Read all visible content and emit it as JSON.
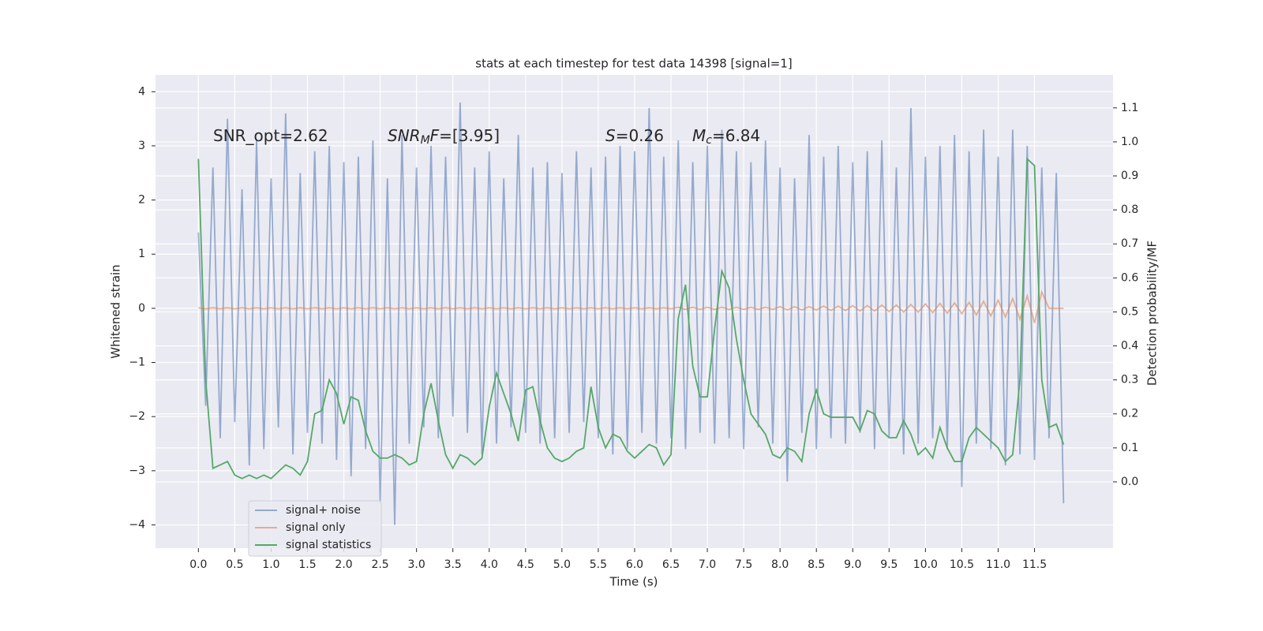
{
  "chart_data": {
    "type": "line",
    "title": "stats at each timestep for test data 14398 [signal=1]",
    "xlabel": "Time (s)",
    "ylabel": "Whitened strain",
    "y2label": "Detection probability/MF",
    "annotations": [
      {
        "parts": [
          "SNR_opt=2.62"
        ]
      },
      {
        "parts": [
          "SNR",
          "M",
          "F",
          "=[3.95]"
        ]
      },
      {
        "parts": [
          "S",
          "=0.26",
          "M",
          "c",
          "=6.84"
        ]
      }
    ],
    "grid": true,
    "legend": "lower left",
    "xlim": [
      -0.59,
      12.58
    ],
    "ylim": [
      -4.43,
      4.31
    ],
    "y2lim": [
      -0.195,
      1.197
    ],
    "xticks": [
      {
        "value": 0,
        "label": "0.0"
      },
      {
        "value": 0.5,
        "label": "0.5"
      },
      {
        "value": 1,
        "label": "1.0"
      },
      {
        "value": 1.5,
        "label": "1.5"
      },
      {
        "value": 2,
        "label": "2.0"
      },
      {
        "value": 2.5,
        "label": "2.5"
      },
      {
        "value": 3,
        "label": "3.0"
      },
      {
        "value": 3.5,
        "label": "3.5"
      },
      {
        "value": 4,
        "label": "4.0"
      },
      {
        "value": 4.5,
        "label": "4.5"
      },
      {
        "value": 5,
        "label": "5.0"
      },
      {
        "value": 5.5,
        "label": "5.5"
      },
      {
        "value": 6,
        "label": "6.0"
      },
      {
        "value": 6.5,
        "label": "6.5"
      },
      {
        "value": 7,
        "label": "7.0"
      },
      {
        "value": 7.5,
        "label": "7.5"
      },
      {
        "value": 8,
        "label": "8.0"
      },
      {
        "value": 8.5,
        "label": "8.5"
      },
      {
        "value": 9,
        "label": "9.0"
      },
      {
        "value": 9.5,
        "label": "9.5"
      },
      {
        "value": 10,
        "label": "10.0"
      },
      {
        "value": 10.5,
        "label": "10.5"
      },
      {
        "value": 11,
        "label": "11.0"
      },
      {
        "value": 11.5,
        "label": "11.5"
      }
    ],
    "yticks": [
      {
        "value": -4,
        "label": "−4"
      },
      {
        "value": -3,
        "label": "−3"
      },
      {
        "value": -2,
        "label": "−2"
      },
      {
        "value": -1,
        "label": "−1"
      },
      0,
      1,
      2,
      3,
      4
    ],
    "y2ticks": [
      {
        "value": 0,
        "label": "0.0"
      },
      {
        "value": 0.1,
        "label": "0.1"
      },
      {
        "value": 0.2,
        "label": "0.2"
      },
      {
        "value": 0.3,
        "label": "0.3"
      },
      {
        "value": 0.4,
        "label": "0.4"
      },
      {
        "value": 0.5,
        "label": "0.5"
      },
      {
        "value": 0.6,
        "label": "0.6"
      },
      {
        "value": 0.7,
        "label": "0.7"
      },
      {
        "value": 0.8,
        "label": "0.8"
      },
      {
        "value": 0.9,
        "label": "0.9"
      },
      {
        "value": 1,
        "label": "1.0"
      },
      {
        "value": 1.1,
        "label": "1.1"
      }
    ],
    "x": [
      0,
      0.1,
      0.2,
      0.3,
      0.4,
      0.5,
      0.6,
      0.7,
      0.8,
      0.9,
      1,
      1.1,
      1.2,
      1.3,
      1.4,
      1.5,
      1.6,
      1.7,
      1.8,
      1.9,
      2,
      2.1,
      2.2,
      2.3,
      2.4,
      2.5,
      2.6,
      2.7,
      2.8,
      2.9,
      3,
      3.1,
      3.2,
      3.3,
      3.4,
      3.5,
      3.6,
      3.7,
      3.8,
      3.9,
      4,
      4.1,
      4.2,
      4.3,
      4.4,
      4.5,
      4.6,
      4.7,
      4.8,
      4.9,
      5,
      5.1,
      5.2,
      5.3,
      5.4,
      5.5,
      5.6,
      5.7,
      5.8,
      5.9,
      6,
      6.1,
      6.2,
      6.3,
      6.4,
      6.5,
      6.6,
      6.7,
      6.8,
      6.9,
      7,
      7.1,
      7.2,
      7.3,
      7.4,
      7.5,
      7.6,
      7.7,
      7.8,
      7.9,
      8,
      8.1,
      8.2,
      8.3,
      8.4,
      8.5,
      8.6,
      8.7,
      8.8,
      8.9,
      9,
      9.1,
      9.2,
      9.3,
      9.4,
      9.5,
      9.6,
      9.7,
      9.8,
      9.9,
      10,
      10.1,
      10.2,
      10.3,
      10.4,
      10.5,
      10.6,
      10.7,
      10.8,
      10.9,
      11,
      11.1,
      11.2,
      11.3,
      11.4,
      11.5,
      11.6,
      11.7,
      11.8,
      11.9
    ],
    "series": [
      {
        "name": "signal+ noise",
        "color": "#4c72b0",
        "values": [
          1.4,
          -1.8,
          2.6,
          -2.4,
          3.5,
          -2.1,
          2.2,
          -2.9,
          3.1,
          -2.6,
          2.4,
          -2.2,
          3.6,
          -2.7,
          2.5,
          -2.3,
          2.9,
          -2.5,
          3.0,
          -2.8,
          2.7,
          -3.1,
          2.8,
          -2.6,
          3.1,
          -3.6,
          2.4,
          -4.0,
          3.2,
          -2.5,
          2.6,
          -2.2,
          3.0,
          -2.4,
          2.8,
          -2.0,
          3.8,
          -2.3,
          2.6,
          -2.7,
          2.9,
          -2.5,
          2.4,
          -2.2,
          3.2,
          -2.3,
          2.6,
          -2.5,
          2.7,
          -2.4,
          2.5,
          -2.3,
          2.9,
          -2.1,
          2.6,
          -2.4,
          2.8,
          -2.7,
          3.0,
          -2.6,
          2.9,
          -2.3,
          3.7,
          -2.5,
          2.8,
          -2.4,
          3.1,
          -2.6,
          2.7,
          -2.3,
          3.0,
          -2.5,
          3.3,
          -2.4,
          2.9,
          -2.6,
          2.7,
          -2.2,
          3.1,
          -2.5,
          2.6,
          -3.2,
          2.4,
          -2.3,
          3.2,
          -2.6,
          2.8,
          -2.4,
          3.0,
          -2.5,
          2.7,
          -2.3,
          2.9,
          -2.6,
          3.1,
          -2.4,
          2.6,
          -2.7,
          3.7,
          -2.5,
          2.8,
          -2.4,
          3.0,
          -2.6,
          3.2,
          -3.3,
          2.9,
          -2.5,
          3.3,
          -2.6,
          2.8,
          -2.9,
          3.3,
          -2.7,
          3.0,
          -2.8,
          2.6,
          -2.4,
          2.5,
          -3.6
        ]
      },
      {
        "name": "signal only",
        "color": "#dd8452",
        "values": [
          0.01,
          -0.01,
          0.01,
          -0.01,
          0.01,
          -0.01,
          0.01,
          -0.01,
          0.01,
          -0.01,
          0.01,
          -0.01,
          0.01,
          -0.01,
          0.01,
          -0.01,
          0.01,
          -0.01,
          0.01,
          -0.01,
          0.01,
          -0.01,
          0.01,
          -0.01,
          0.01,
          -0.01,
          0.01,
          -0.01,
          0.01,
          -0.01,
          0.01,
          -0.01,
          0.01,
          -0.01,
          0.01,
          -0.01,
          0.01,
          -0.01,
          0.01,
          -0.01,
          0.01,
          -0.01,
          0.01,
          -0.01,
          0.01,
          -0.01,
          0.01,
          -0.01,
          0.01,
          -0.01,
          0.01,
          -0.01,
          0.01,
          -0.01,
          0.01,
          -0.01,
          0.01,
          -0.01,
          0.01,
          -0.01,
          0.01,
          -0.01,
          0.01,
          -0.01,
          0.01,
          -0.01,
          0.02,
          -0.02,
          0.02,
          -0.02,
          0.02,
          -0.02,
          0.02,
          -0.02,
          0.02,
          -0.02,
          0.02,
          -0.02,
          0.02,
          -0.02,
          0.03,
          -0.03,
          0.03,
          -0.03,
          0.03,
          -0.03,
          0.04,
          -0.04,
          0.04,
          -0.04,
          0.05,
          -0.05,
          0.05,
          -0.05,
          0.06,
          -0.06,
          0.06,
          -0.07,
          0.07,
          -0.07,
          0.08,
          -0.08,
          0.09,
          -0.09,
          0.1,
          -0.1,
          0.11,
          -0.12,
          0.13,
          -0.14,
          0.15,
          -0.16,
          0.18,
          -0.2,
          0.23,
          -0.27,
          0.3,
          0,
          0,
          0
        ]
      },
      {
        "name": "signal statistics",
        "color": "#55a868",
        "axis": "y2",
        "values": [
          0.95,
          0.3,
          0.04,
          0.05,
          0.06,
          0.02,
          0.01,
          0.02,
          0.01,
          0.02,
          0.01,
          0.03,
          0.05,
          0.04,
          0.02,
          0.06,
          0.2,
          0.21,
          0.3,
          0.26,
          0.17,
          0.25,
          0.24,
          0.15,
          0.09,
          0.07,
          0.07,
          0.08,
          0.07,
          0.05,
          0.06,
          0.2,
          0.29,
          0.18,
          0.08,
          0.04,
          0.08,
          0.07,
          0.05,
          0.07,
          0.22,
          0.32,
          0.26,
          0.2,
          0.12,
          0.27,
          0.28,
          0.18,
          0.1,
          0.07,
          0.06,
          0.07,
          0.09,
          0.1,
          0.28,
          0.16,
          0.1,
          0.14,
          0.13,
          0.09,
          0.07,
          0.09,
          0.11,
          0.1,
          0.05,
          0.08,
          0.48,
          0.58,
          0.34,
          0.25,
          0.25,
          0.45,
          0.62,
          0.57,
          0.42,
          0.3,
          0.2,
          0.17,
          0.14,
          0.08,
          0.07,
          0.1,
          0.09,
          0.06,
          0.2,
          0.27,
          0.2,
          0.19,
          0.19,
          0.19,
          0.19,
          0.15,
          0.21,
          0.2,
          0.15,
          0.13,
          0.13,
          0.18,
          0.14,
          0.08,
          0.1,
          0.07,
          0.16,
          0.1,
          0.06,
          0.06,
          0.13,
          0.16,
          0.14,
          0.12,
          0.1,
          0.06,
          0.08,
          0.3,
          0.95,
          0.93,
          0.3,
          0.16,
          0.17,
          0.11
        ]
      }
    ]
  }
}
